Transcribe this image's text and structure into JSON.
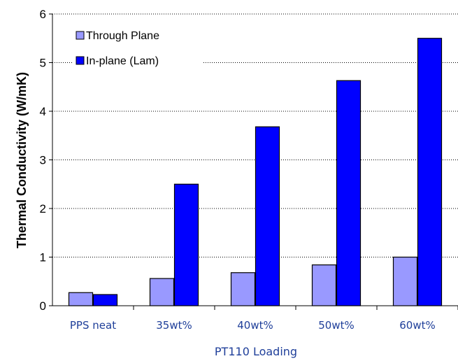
{
  "chart_data": {
    "type": "bar",
    "categories": [
      "PPS neat",
      "35wt%",
      "40wt%",
      "50wt%",
      "60wt%"
    ],
    "series": [
      {
        "name": "Through Plane",
        "values": [
          0.27,
          0.56,
          0.68,
          0.84,
          1.0
        ],
        "color": "#9999ff"
      },
      {
        "name": "In-plane (Lam)",
        "values": [
          0.23,
          2.5,
          3.68,
          4.63,
          5.5
        ],
        "color": "#0000ff"
      }
    ],
    "xlabel": "PT110 Loading",
    "ylabel": "Thermal Conductivity (W/mK)",
    "ylim": [
      0,
      6
    ],
    "yticks": [
      0,
      1,
      2,
      3,
      4,
      5,
      6
    ],
    "grid": true,
    "legend_position": "top-left",
    "axis_label_color": "#1f3f9a"
  }
}
